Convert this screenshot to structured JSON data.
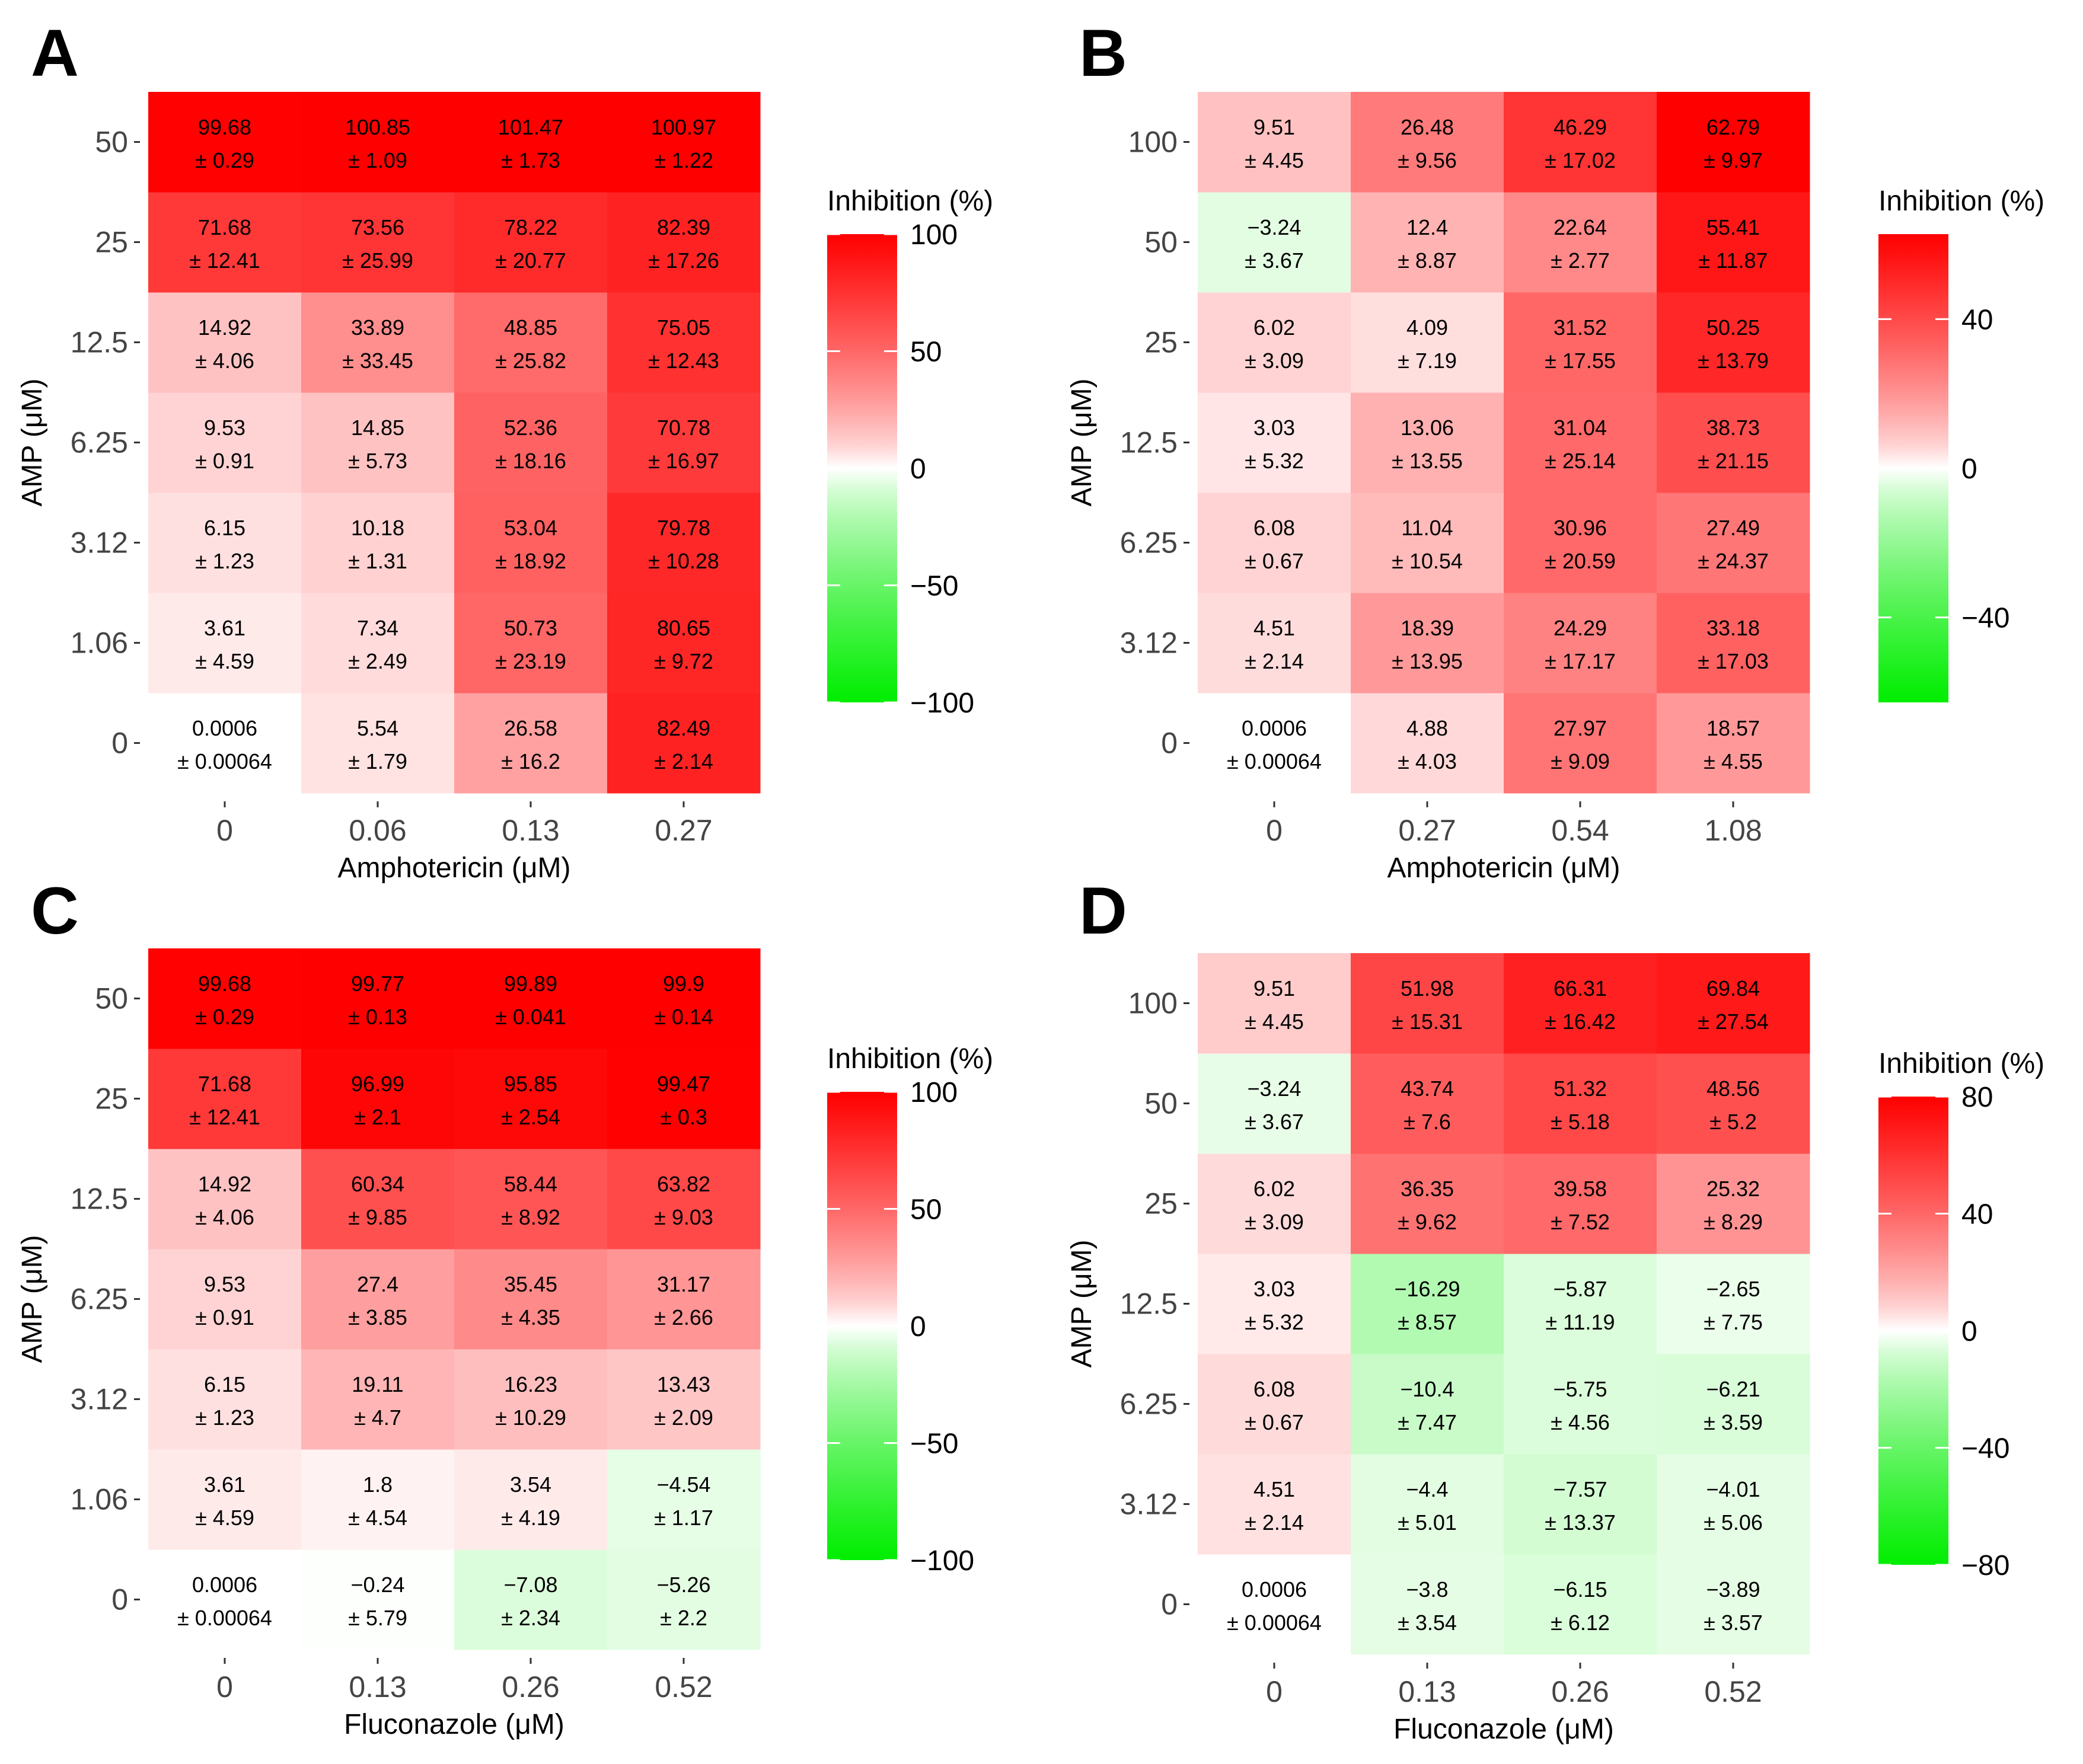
{
  "colors": {
    "low": "#00ee00",
    "mid": "#ffffff",
    "high": "#ff0000"
  },
  "chart_data": [
    {
      "panel": "A",
      "type": "heatmap",
      "xlabel": "Amphotericin (μM)",
      "ylabel": "AMP (μM)",
      "x_categories": [
        "0",
        "0.06",
        "0.13",
        "0.27"
      ],
      "y_categories": [
        "0",
        "1.06",
        "3.12",
        "6.25",
        "12.5",
        "25",
        "50"
      ],
      "values": [
        [
          "0.0006",
          "5.54",
          "26.58",
          "82.49"
        ],
        [
          "3.61",
          "7.34",
          "50.73",
          "80.65"
        ],
        [
          "6.15",
          "10.18",
          "53.04",
          "79.78"
        ],
        [
          "9.53",
          "14.85",
          "52.36",
          "70.78"
        ],
        [
          "14.92",
          "33.89",
          "48.85",
          "75.05"
        ],
        [
          "71.68",
          "73.56",
          "78.22",
          "82.39"
        ],
        [
          "99.68",
          "100.85",
          "101.47",
          "100.97"
        ]
      ],
      "errors": [
        [
          "± 0.00064",
          "± 1.79",
          "± 16.2",
          "± 2.14"
        ],
        [
          "± 4.59",
          "± 2.49",
          "± 23.19",
          "± 9.72"
        ],
        [
          "± 1.23",
          "± 1.31",
          "± 18.92",
          "± 10.28"
        ],
        [
          "± 0.91",
          "± 5.73",
          "± 18.16",
          "± 16.97"
        ],
        [
          "± 4.06",
          "± 33.45",
          "± 25.82",
          "± 12.43"
        ],
        [
          "± 12.41",
          "± 25.99",
          "± 20.77",
          "± 17.26"
        ],
        [
          "± 0.29",
          "± 1.09",
          "± 1.73",
          "± 1.22"
        ]
      ],
      "legend": {
        "title": "Inhibition (%)",
        "range": [
          -100,
          100
        ],
        "ticks": [
          100,
          50,
          0,
          -50,
          -100
        ],
        "tick_labels": [
          "100",
          "50",
          "0",
          "−50",
          "−100"
        ]
      }
    },
    {
      "panel": "B",
      "type": "heatmap",
      "xlabel": "Amphotericin (μM)",
      "ylabel": "AMP (μM)",
      "x_categories": [
        "0",
        "0.27",
        "0.54",
        "1.08"
      ],
      "y_categories": [
        "0",
        "3.12",
        "6.25",
        "12.5",
        "25",
        "50",
        "100"
      ],
      "values": [
        [
          "0.0006",
          "4.88",
          "27.97",
          "18.57"
        ],
        [
          "4.51",
          "18.39",
          "24.29",
          "33.18"
        ],
        [
          "6.08",
          "11.04",
          "30.96",
          "27.49"
        ],
        [
          "3.03",
          "13.06",
          "31.04",
          "38.73"
        ],
        [
          "6.02",
          "4.09",
          "31.52",
          "50.25"
        ],
        [
          "−3.24",
          "12.4",
          "22.64",
          "55.41"
        ],
        [
          "9.51",
          "26.48",
          "46.29",
          "62.79"
        ]
      ],
      "errors": [
        [
          "± 0.00064",
          "± 4.03",
          "± 9.09",
          "± 4.55"
        ],
        [
          "± 2.14",
          "± 13.95",
          "± 17.17",
          "± 17.03"
        ],
        [
          "± 0.67",
          "± 10.54",
          "± 20.59",
          "± 24.37"
        ],
        [
          "± 5.32",
          "± 13.55",
          "± 25.14",
          "± 21.15"
        ],
        [
          "± 3.09",
          "± 7.19",
          "± 17.55",
          "± 13.79"
        ],
        [
          "± 3.67",
          "± 8.87",
          "± 2.77",
          "± 11.87"
        ],
        [
          "± 4.45",
          "± 9.56",
          "± 17.02",
          "± 9.97"
        ]
      ],
      "legend": {
        "title": "Inhibition (%)",
        "range": [
          -62.79,
          62.79
        ],
        "ticks": [
          40,
          0,
          -40
        ],
        "tick_labels": [
          "40",
          "0",
          "−40"
        ]
      }
    },
    {
      "panel": "C",
      "type": "heatmap",
      "xlabel": "Fluconazole (μM)",
      "ylabel": "AMP (μM)",
      "x_categories": [
        "0",
        "0.13",
        "0.26",
        "0.52"
      ],
      "y_categories": [
        "0",
        "1.06",
        "3.12",
        "6.25",
        "12.5",
        "25",
        "50"
      ],
      "values": [
        [
          "0.0006",
          "−0.24",
          "−7.08",
          "−5.26"
        ],
        [
          "3.61",
          "1.8",
          "3.54",
          "−4.54"
        ],
        [
          "6.15",
          "19.11",
          "16.23",
          "13.43"
        ],
        [
          "9.53",
          "27.4",
          "35.45",
          "31.17"
        ],
        [
          "14.92",
          "60.34",
          "58.44",
          "63.82"
        ],
        [
          "71.68",
          "96.99",
          "95.85",
          "99.47"
        ],
        [
          "99.68",
          "99.77",
          "99.89",
          "99.9"
        ]
      ],
      "errors": [
        [
          "± 0.00064",
          "± 5.79",
          "± 2.34",
          "± 2.2"
        ],
        [
          "± 4.59",
          "± 4.54",
          "± 4.19",
          "± 1.17"
        ],
        [
          "± 1.23",
          "± 4.7",
          "± 10.29",
          "± 2.09"
        ],
        [
          "± 0.91",
          "± 3.85",
          "± 4.35",
          "± 2.66"
        ],
        [
          "± 4.06",
          "± 9.85",
          "± 8.92",
          "± 9.03"
        ],
        [
          "± 12.41",
          "± 2.1",
          "± 2.54",
          "± 0.3"
        ],
        [
          "± 0.29",
          "± 0.13",
          "± 0.041",
          "± 0.14"
        ]
      ],
      "legend": {
        "title": "Inhibition (%)",
        "range": [
          -100,
          100
        ],
        "ticks": [
          100,
          50,
          0,
          -50,
          -100
        ],
        "tick_labels": [
          "100",
          "50",
          "0",
          "−50",
          "−100"
        ]
      }
    },
    {
      "panel": "D",
      "type": "heatmap",
      "xlabel": "Fluconazole (μM)",
      "ylabel": "AMP (μM)",
      "x_categories": [
        "0",
        "0.13",
        "0.26",
        "0.52"
      ],
      "y_categories": [
        "0",
        "3.12",
        "6.25",
        "12.5",
        "25",
        "50",
        "100"
      ],
      "values": [
        [
          "0.0006",
          "−3.8",
          "−6.15",
          "−3.89"
        ],
        [
          "4.51",
          "−4.4",
          "−7.57",
          "−4.01"
        ],
        [
          "6.08",
          "−10.4",
          "−5.75",
          "−6.21"
        ],
        [
          "3.03",
          "−16.29",
          "−5.87",
          "−2.65"
        ],
        [
          "6.02",
          "36.35",
          "39.58",
          "25.32"
        ],
        [
          "−3.24",
          "43.74",
          "51.32",
          "48.56"
        ],
        [
          "9.51",
          "51.98",
          "66.31",
          "69.84"
        ]
      ],
      "errors": [
        [
          "± 0.00064",
          "± 3.54",
          "± 6.12",
          "± 3.57"
        ],
        [
          "± 2.14",
          "± 5.01",
          "± 13.37",
          "± 5.06"
        ],
        [
          "± 0.67",
          "± 7.47",
          "± 4.56",
          "± 3.59"
        ],
        [
          "± 5.32",
          "± 8.57",
          "± 11.19",
          "± 7.75"
        ],
        [
          "± 3.09",
          "± 9.62",
          "± 7.52",
          "± 8.29"
        ],
        [
          "± 3.67",
          "± 7.6",
          "± 5.18",
          "± 5.2"
        ],
        [
          "± 4.45",
          "± 15.31",
          "± 16.42",
          "± 27.54"
        ]
      ],
      "legend": {
        "title": "Inhibition (%)",
        "range": [
          -80,
          80
        ],
        "ticks": [
          80,
          40,
          0,
          -40,
          -80
        ],
        "tick_labels": [
          "80",
          "40",
          "0",
          "−40",
          "−80"
        ]
      }
    }
  ]
}
